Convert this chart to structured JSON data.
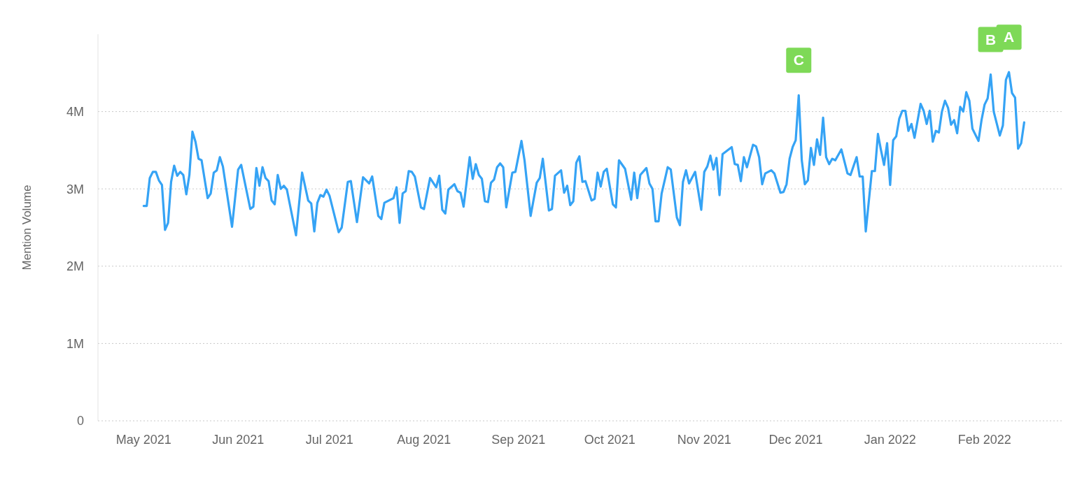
{
  "chart_data": {
    "type": "line",
    "ylabel": "Mention Volume",
    "color": "#35a3f5",
    "grid": "y",
    "line_style": "solid",
    "xlim": [
      "2021-04-16",
      "2022-02-27"
    ],
    "xticks": [
      {
        "value": "2021-05-01",
        "label": "May 2021"
      },
      {
        "value": "2021-06-01",
        "label": "Jun 2021"
      },
      {
        "value": "2021-07-01",
        "label": "Jul 2021"
      },
      {
        "value": "2021-08-01",
        "label": "Aug 2021"
      },
      {
        "value": "2021-09-01",
        "label": "Sep 2021"
      },
      {
        "value": "2021-10-01",
        "label": "Oct 2021"
      },
      {
        "value": "2021-11-01",
        "label": "Nov 2021"
      },
      {
        "value": "2021-12-01",
        "label": "Dec 2021"
      },
      {
        "value": "2022-01-01",
        "label": "Jan 2022"
      },
      {
        "value": "2022-02-01",
        "label": "Feb 2022"
      }
    ],
    "ylim": [
      0,
      5000000
    ],
    "yticks": [
      0,
      {
        "value": 1000000,
        "label": "1M"
      },
      {
        "value": 2000000,
        "label": "2M"
      },
      {
        "value": 3000000,
        "label": "3M"
      },
      {
        "value": 4000000,
        "label": "4M"
      }
    ],
    "annotations": [
      {
        "text": "C",
        "x": "2021-12-02",
        "y": 4210000
      },
      {
        "text": "B",
        "x": "2022-02-03",
        "y": 4480000
      },
      {
        "text": "A",
        "x": "2022-02-09",
        "y": 4510000
      }
    ],
    "x": [
      "2021-05-01",
      "2021-05-02",
      "2021-05-03",
      "2021-05-04",
      "2021-05-05",
      "2021-05-06",
      "2021-05-07",
      "2021-05-08",
      "2021-05-09",
      "2021-05-10",
      "2021-05-11",
      "2021-05-12",
      "2021-05-13",
      "2021-05-14",
      "2021-05-15",
      "2021-05-16",
      "2021-05-17",
      "2021-05-18",
      "2021-05-19",
      "2021-05-20",
      "2021-05-22",
      "2021-05-23",
      "2021-05-24",
      "2021-05-25",
      "2021-05-26",
      "2021-05-27",
      "2021-05-30",
      "2021-06-01",
      "2021-06-02",
      "2021-06-05",
      "2021-06-06",
      "2021-06-07",
      "2021-06-08",
      "2021-06-09",
      "2021-06-10",
      "2021-06-11",
      "2021-06-12",
      "2021-06-13",
      "2021-06-14",
      "2021-06-15",
      "2021-06-16",
      "2021-06-17",
      "2021-06-20",
      "2021-06-22",
      "2021-06-24",
      "2021-06-25",
      "2021-06-26",
      "2021-06-27",
      "2021-06-28",
      "2021-06-29",
      "2021-06-30",
      "2021-07-01",
      "2021-07-04",
      "2021-07-05",
      "2021-07-07",
      "2021-07-08",
      "2021-07-10",
      "2021-07-12",
      "2021-07-14",
      "2021-07-15",
      "2021-07-17",
      "2021-07-18",
      "2021-07-19",
      "2021-07-21",
      "2021-07-22",
      "2021-07-23",
      "2021-07-24",
      "2021-07-25",
      "2021-07-26",
      "2021-07-27",
      "2021-07-28",
      "2021-07-29",
      "2021-07-31",
      "2021-08-01",
      "2021-08-03",
      "2021-08-05",
      "2021-08-06",
      "2021-08-07",
      "2021-08-08",
      "2021-08-09",
      "2021-08-11",
      "2021-08-12",
      "2021-08-13",
      "2021-08-14",
      "2021-08-16",
      "2021-08-17",
      "2021-08-18",
      "2021-08-19",
      "2021-08-20",
      "2021-08-21",
      "2021-08-22",
      "2021-08-23",
      "2021-08-24",
      "2021-08-25",
      "2021-08-26",
      "2021-08-27",
      "2021-08-28",
      "2021-08-30",
      "2021-08-31",
      "2021-09-02",
      "2021-09-03",
      "2021-09-05",
      "2021-09-07",
      "2021-09-08",
      "2021-09-09",
      "2021-09-11",
      "2021-09-12",
      "2021-09-13",
      "2021-09-15",
      "2021-09-16",
      "2021-09-17",
      "2021-09-18",
      "2021-09-19",
      "2021-09-20",
      "2021-09-21",
      "2021-09-22",
      "2021-09-23",
      "2021-09-25",
      "2021-09-26",
      "2021-09-27",
      "2021-09-28",
      "2021-09-29",
      "2021-09-30",
      "2021-10-02",
      "2021-10-03",
      "2021-10-04",
      "2021-10-06",
      "2021-10-08",
      "2021-10-09",
      "2021-10-10",
      "2021-10-11",
      "2021-10-13",
      "2021-10-14",
      "2021-10-15",
      "2021-10-16",
      "2021-10-17",
      "2021-10-18",
      "2021-10-20",
      "2021-10-21",
      "2021-10-23",
      "2021-10-24",
      "2021-10-25",
      "2021-10-26",
      "2021-10-27",
      "2021-10-29",
      "2021-10-31",
      "2021-11-01",
      "2021-11-02",
      "2021-11-03",
      "2021-11-04",
      "2021-11-05",
      "2021-11-06",
      "2021-11-07",
      "2021-11-10",
      "2021-11-11",
      "2021-11-12",
      "2021-11-13",
      "2021-11-14",
      "2021-11-15",
      "2021-11-17",
      "2021-11-18",
      "2021-11-19",
      "2021-11-20",
      "2021-11-21",
      "2021-11-23",
      "2021-11-24",
      "2021-11-26",
      "2021-11-27",
      "2021-11-28",
      "2021-11-29",
      "2021-11-30",
      "2021-12-01",
      "2021-12-02",
      "2021-12-03",
      "2021-12-04",
      "2021-12-05",
      "2021-12-06",
      "2021-12-07",
      "2021-12-08",
      "2021-12-09",
      "2021-12-10",
      "2021-12-11",
      "2021-12-12",
      "2021-12-13",
      "2021-12-14",
      "2021-12-16",
      "2021-12-18",
      "2021-12-19",
      "2021-12-21",
      "2021-12-22",
      "2021-12-23",
      "2021-12-24",
      "2021-12-26",
      "2021-12-27",
      "2021-12-28",
      "2021-12-29",
      "2021-12-30",
      "2021-12-31",
      "2022-01-01",
      "2022-01-02",
      "2022-01-03",
      "2022-01-04",
      "2022-01-05",
      "2022-01-06",
      "2022-01-07",
      "2022-01-08",
      "2022-01-09",
      "2022-01-11",
      "2022-01-12",
      "2022-01-13",
      "2022-01-14",
      "2022-01-15",
      "2022-01-16",
      "2022-01-17",
      "2022-01-18",
      "2022-01-19",
      "2022-01-20",
      "2022-01-21",
      "2022-01-22",
      "2022-01-23",
      "2022-01-24",
      "2022-01-25",
      "2022-01-26",
      "2022-01-27",
      "2022-01-28",
      "2022-01-30",
      "2022-01-31",
      "2022-02-01",
      "2022-02-02",
      "2022-02-03",
      "2022-02-04",
      "2022-02-06",
      "2022-02-07",
      "2022-02-08",
      "2022-02-09",
      "2022-02-10",
      "2022-02-11",
      "2022-02-12",
      "2022-02-13",
      "2022-02-14"
    ],
    "values": [
      2780000,
      2780000,
      3140000,
      3220000,
      3220000,
      3110000,
      3050000,
      2470000,
      2560000,
      3090000,
      3300000,
      3170000,
      3220000,
      3180000,
      2930000,
      3180000,
      3740000,
      3610000,
      3390000,
      3370000,
      2880000,
      2940000,
      3210000,
      3240000,
      3410000,
      3290000,
      2510000,
      3250000,
      3310000,
      2740000,
      2770000,
      3270000,
      3040000,
      3280000,
      3140000,
      3100000,
      2850000,
      2800000,
      3180000,
      3000000,
      3040000,
      2990000,
      2400000,
      3210000,
      2850000,
      2810000,
      2450000,
      2820000,
      2920000,
      2900000,
      2990000,
      2910000,
      2440000,
      2500000,
      3090000,
      3100000,
      2570000,
      3150000,
      3070000,
      3160000,
      2650000,
      2610000,
      2820000,
      2860000,
      2880000,
      3020000,
      2560000,
      2940000,
      2970000,
      3230000,
      3220000,
      3160000,
      2760000,
      2740000,
      3140000,
      3020000,
      3170000,
      2730000,
      2680000,
      2990000,
      3060000,
      2970000,
      2950000,
      2770000,
      3410000,
      3130000,
      3320000,
      3180000,
      3130000,
      2840000,
      2830000,
      3080000,
      3120000,
      3280000,
      3330000,
      3280000,
      2760000,
      3210000,
      3220000,
      3620000,
      3370000,
      2650000,
      3080000,
      3140000,
      3390000,
      2720000,
      2740000,
      3170000,
      3240000,
      2950000,
      3040000,
      2790000,
      2840000,
      3340000,
      3420000,
      3090000,
      3100000,
      2850000,
      2870000,
      3210000,
      3030000,
      3220000,
      3260000,
      2800000,
      2760000,
      3370000,
      3260000,
      2860000,
      3210000,
      2880000,
      3180000,
      3270000,
      3070000,
      3000000,
      2580000,
      2580000,
      2940000,
      3280000,
      3250000,
      2630000,
      2530000,
      3090000,
      3240000,
      3070000,
      3220000,
      2730000,
      3220000,
      3290000,
      3430000,
      3250000,
      3400000,
      2920000,
      3450000,
      3540000,
      3320000,
      3310000,
      3100000,
      3410000,
      3280000,
      3570000,
      3550000,
      3410000,
      3060000,
      3200000,
      3240000,
      3200000,
      2950000,
      2960000,
      3060000,
      3390000,
      3540000,
      3630000,
      4210000,
      3370000,
      3060000,
      3110000,
      3530000,
      3310000,
      3640000,
      3440000,
      3920000,
      3410000,
      3320000,
      3390000,
      3370000,
      3510000,
      3200000,
      3180000,
      3410000,
      3160000,
      3160000,
      2450000,
      3230000,
      3230000,
      3710000,
      3500000,
      3310000,
      3590000,
      3050000,
      3630000,
      3680000,
      3910000,
      4010000,
      4010000,
      3750000,
      3840000,
      3660000,
      4100000,
      4010000,
      3840000,
      4010000,
      3610000,
      3750000,
      3730000,
      4000000,
      4140000,
      4050000,
      3830000,
      3890000,
      3720000,
      4060000,
      4000000,
      4250000,
      4140000,
      3780000,
      3620000,
      3890000,
      4090000,
      4170000,
      4480000,
      4000000,
      3690000,
      3820000,
      4410000,
      4510000,
      4240000,
      4180000,
      3520000,
      3590000,
      3860000
    ]
  }
}
